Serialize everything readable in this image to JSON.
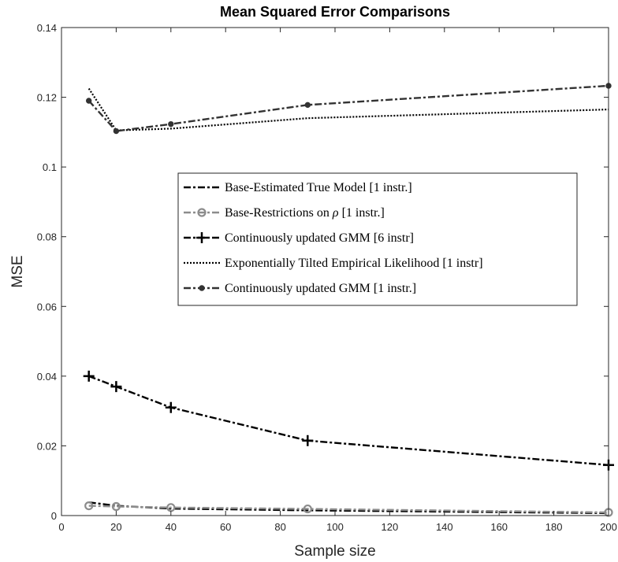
{
  "chart_data": {
    "type": "line",
    "title": "Mean Squared Error Comparisons",
    "xlabel": "Sample size",
    "ylabel": "MSE",
    "xlim": [
      0,
      200
    ],
    "ylim": [
      0,
      0.14
    ],
    "xticks": [
      0,
      20,
      40,
      60,
      80,
      100,
      120,
      140,
      160,
      180,
      200
    ],
    "xtick_labels": [
      "0",
      "20",
      "40",
      "60",
      "80",
      "100",
      "120",
      "140",
      "160",
      "180",
      "200"
    ],
    "yticks": [
      0,
      0.02,
      0.04,
      0.06,
      0.08,
      0.1,
      0.12,
      0.14
    ],
    "ytick_labels": [
      "0",
      "0.02",
      "0.04",
      "0.06",
      "0.08",
      "0.1",
      "0.12",
      "0.14"
    ],
    "grid": false,
    "legend_position": "center-right",
    "x": [
      10,
      20,
      40,
      90,
      200
    ],
    "series": [
      {
        "name": "Base-Estimated True Model [1 instr.]",
        "values": [
          0.0038,
          0.0028,
          0.002,
          0.0015,
          0.0007
        ],
        "color": "#000000",
        "line_style": "dashdot",
        "marker": "none"
      },
      {
        "name": "Base-Restrictions on ρ [1 instr.]",
        "name_prefix": "Base-Restrictions on ",
        "name_symbol": "ρ",
        "name_suffix": " [1 instr.]",
        "values": [
          0.0028,
          0.0026,
          0.0023,
          0.0019,
          0.0009
        ],
        "color": "#8c8c8c",
        "line_style": "dashdot",
        "marker": "circle-open"
      },
      {
        "name": "Continuously updated GMM [6 instr]",
        "values": [
          0.04,
          0.037,
          0.031,
          0.0215,
          0.0145
        ],
        "color": "#000000",
        "line_style": "dashdot",
        "marker": "plus"
      },
      {
        "name": "Exponentially Tilted Empirical Likelihood [1 instr]",
        "values": [
          0.1225,
          0.1105,
          0.111,
          0.114,
          0.1165
        ],
        "color": "#000000",
        "line_style": "dotted",
        "marker": "none"
      },
      {
        "name": "Continuously updated GMM [1 instr.]",
        "values": [
          0.119,
          0.1103,
          0.1123,
          0.1178,
          0.1233
        ],
        "color": "#333333",
        "line_style": "dashdot",
        "marker": "dot"
      }
    ]
  }
}
